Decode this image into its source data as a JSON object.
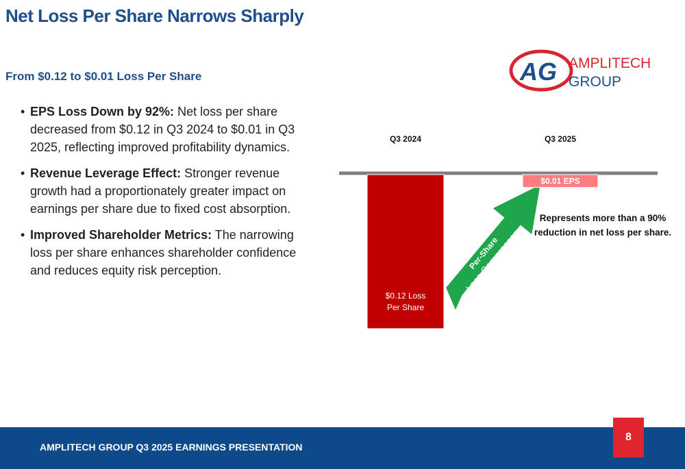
{
  "header": {
    "title": "Net Loss Per Share Narrows Sharply",
    "subtitle": "From $0.12 to $0.01 Loss Per Share"
  },
  "logo": {
    "mark": "AG",
    "line1": "AMPLITECH",
    "line2": "GROUP"
  },
  "bullets": [
    {
      "lead": "EPS Loss Down by 92%:",
      "text": "Net loss per share decreased from $0.12 in Q3 2024 to $0.01 in Q3 2025, reflecting improved profitability dynamics."
    },
    {
      "lead": "Revenue Leverage Effect:",
      "text": "Stronger revenue growth had a proportionately greater impact on earnings per share due to fixed cost absorption."
    },
    {
      "lead": "Improved Shareholder Metrics:",
      "text": "The narrowing loss per share enhances shareholder confidence and reduces equity risk perception."
    }
  ],
  "chart": {
    "type": "bar",
    "categories": [
      "Q3 2024",
      "Q3 2025"
    ],
    "values": [
      0.12,
      0.01
    ],
    "value_labels": [
      "$0.12 Loss Per Share",
      "$0.01 EPS"
    ],
    "colors": [
      "#c00000",
      "#ff7c80"
    ],
    "arrow_text": [
      "Per-Share",
      "Loss Compresses"
    ],
    "annotation": "Represents more than a 90% reduction in net loss per share."
  },
  "footer": {
    "text": "AMPLITECH GROUP Q3 2025 EARNINGS PRESENTATION",
    "page": "8"
  }
}
